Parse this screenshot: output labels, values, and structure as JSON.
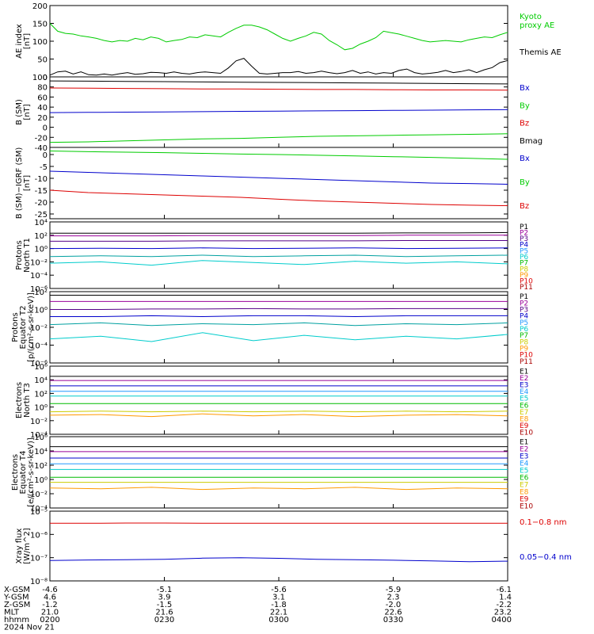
{
  "colors": {
    "black": "#000000",
    "red": "#dd0000",
    "green": "#00cc00",
    "blue": "#0000cc",
    "purple": "#990099",
    "darkpurple": "#550088",
    "cyan": "#00cccc",
    "teal": "#00a0a0",
    "yellow": "#cccc00",
    "orange": "#ff9900",
    "darkred": "#aa0000",
    "lightblue": "#2299ff",
    "kgreen": "#00bb00"
  },
  "chart_data": [
    {
      "type": "line",
      "ylabel": "AE index\n[nT]",
      "ylim": [
        0,
        200
      ],
      "yticks": [
        "0",
        "50",
        "100",
        "150",
        "200"
      ],
      "series": [
        {
          "name": "Kyoto\nproxy AE",
          "color": "green",
          "values": [
            150,
            128,
            122,
            120,
            115,
            112,
            108,
            102,
            98,
            102,
            100,
            108,
            104,
            112,
            108,
            98,
            102,
            105,
            112,
            110,
            118,
            115,
            112,
            125,
            136,
            145,
            145,
            140,
            132,
            120,
            108,
            100,
            108,
            115,
            125,
            120,
            102,
            90,
            76,
            80,
            92,
            100,
            110,
            128,
            124,
            120,
            114,
            108,
            102,
            98,
            100,
            102,
            100,
            98,
            104,
            108,
            112,
            110,
            118,
            125
          ]
        },
        {
          "name": "Themis AE",
          "color": "black",
          "values": [
            5,
            14,
            16,
            8,
            14,
            6,
            5,
            8,
            5,
            9,
            12,
            7,
            9,
            13,
            12,
            10,
            14,
            10,
            8,
            12,
            14,
            12,
            10,
            25,
            45,
            52,
            30,
            10,
            8,
            10,
            12,
            12,
            15,
            10,
            12,
            16,
            12,
            9,
            12,
            18,
            10,
            14,
            8,
            12,
            10,
            18,
            22,
            12,
            8,
            10,
            13,
            18,
            12,
            15,
            20,
            12,
            20,
            26,
            40,
            46
          ]
        }
      ]
    },
    {
      "type": "line",
      "ylabel": "B (SM)\n[nT]",
      "ylim": [
        -40,
        100
      ],
      "yticks": [
        "-40",
        "-20",
        "0",
        "20",
        "40",
        "60",
        "80",
        "100"
      ],
      "series": [
        {
          "name": "Bx",
          "color": "blue",
          "values": [
            29,
            29.5,
            30,
            30.5,
            31,
            31.5,
            32,
            32.5,
            33,
            33.5,
            34,
            34.5,
            35
          ]
        },
        {
          "name": "By",
          "color": "green",
          "values": [
            -30,
            -29,
            -27,
            -25,
            -23,
            -22,
            -20,
            -18,
            -17,
            -16,
            -15,
            -14,
            -13
          ]
        },
        {
          "name": "Bz",
          "color": "red",
          "values": [
            78,
            77.5,
            77,
            76.5,
            76,
            76,
            75.5,
            75,
            75,
            74.5,
            74,
            74,
            73.5
          ]
        },
        {
          "name": "Bmag",
          "color": "black",
          "values": [
            92,
            91.5,
            91,
            90.5,
            90,
            89.5,
            89,
            88.5,
            88,
            87.5,
            87,
            86.5,
            86
          ]
        }
      ]
    },
    {
      "type": "line",
      "ylabel": "B (SM)−IGRF (SM)\n[nT]",
      "ylim": [
        -27,
        3
      ],
      "yticks": [
        "-25",
        "-20",
        "-15",
        "-10",
        "-5",
        "0"
      ],
      "series": [
        {
          "name": "Bx",
          "color": "blue",
          "values": [
            -7,
            -7.5,
            -8,
            -8.5,
            -9,
            -9.5,
            -10,
            -10.5,
            -11,
            -11.5,
            -12,
            -12.2,
            -12.5
          ]
        },
        {
          "name": "By",
          "color": "green",
          "values": [
            1.5,
            1.2,
            1,
            0.8,
            0.5,
            0.2,
            0,
            -0.3,
            -0.6,
            -0.9,
            -1.2,
            -1.6,
            -2
          ]
        },
        {
          "name": "Bz",
          "color": "red",
          "values": [
            -15,
            -16,
            -16.5,
            -17,
            -17.5,
            -18,
            -18.8,
            -19.5,
            -20,
            -20.5,
            -21,
            -21.3,
            -21.5
          ]
        }
      ]
    },
    {
      "type": "line",
      "ylabel": "Protons\nNorth T1",
      "log": true,
      "ylim": [
        -6,
        4
      ],
      "yticks": [
        "10⁻⁶",
        "10⁻⁴",
        "10⁻²",
        "10⁰",
        "10²",
        "10⁴"
      ],
      "legend": [
        "P1",
        "P2",
        "P3",
        "P4",
        "P5",
        "P6",
        "P7",
        "P8",
        "P9",
        "P10",
        "P11"
      ],
      "series": [
        {
          "name": "P1",
          "color": "black",
          "values": [
            2.3,
            2.3,
            2.3,
            2.3,
            2.3,
            2.3,
            2.3,
            2.35,
            2.35,
            2.4
          ]
        },
        {
          "name": "P2",
          "color": "purple",
          "values": [
            1.9,
            1.9,
            1.9,
            1.95,
            1.95,
            1.95,
            1.95,
            2,
            2,
            2
          ]
        },
        {
          "name": "P3",
          "color": "darkpurple",
          "values": [
            1.1,
            1.1,
            1.1,
            1.15,
            1.15,
            1.15,
            1.15,
            1.2,
            1.2,
            1.2
          ]
        },
        {
          "name": "P4",
          "color": "blue",
          "values": [
            0,
            0.05,
            0,
            0.1,
            0,
            0.05,
            0.1,
            0,
            0.05,
            0.1
          ]
        },
        {
          "name": "P5",
          "color": "teal",
          "values": [
            -1.2,
            -1.1,
            -1.2,
            -1.0,
            -1.2,
            -1.1,
            -1.0,
            -1.2,
            -1.1,
            -1.0
          ]
        },
        {
          "name": "P6",
          "color": "cyan",
          "values": [
            -2.2,
            -2.0,
            -2.5,
            -1.8,
            -2.1,
            -2.4,
            -1.9,
            -2.2,
            -2.0,
            -2.3
          ]
        }
      ]
    },
    {
      "type": "line",
      "ylabel": "Protons\nEquator T2\n[p/(cm²-s-sr-keV)]",
      "log": true,
      "ylim": [
        -6,
        2
      ],
      "yticks": [
        "10⁻⁶",
        "10⁻⁴",
        "10⁻²",
        "10⁰",
        "10²"
      ],
      "legend": [
        "P1",
        "P2",
        "P3",
        "P4",
        "P5",
        "P6",
        "P7",
        "P8",
        "P9",
        "P10",
        "P11"
      ],
      "series": [
        {
          "name": "P1",
          "color": "black",
          "values": [
            1.6,
            1.6,
            1.6,
            1.6,
            1.6,
            1.6,
            1.6,
            1.6,
            1.6,
            1.6
          ]
        },
        {
          "name": "P2",
          "color": "purple",
          "values": [
            0.9,
            0.9,
            0.9,
            0.9,
            0.9,
            0.9,
            0.9,
            0.9,
            0.9,
            0.9
          ]
        },
        {
          "name": "P3",
          "color": "darkpurple",
          "values": [
            0,
            0,
            0.05,
            0.05,
            0.1,
            0.05,
            0.05,
            0.1,
            0.1,
            0.1
          ]
        },
        {
          "name": "P4",
          "color": "blue",
          "values": [
            -0.8,
            -0.8,
            -0.7,
            -0.8,
            -0.7,
            -0.7,
            -0.8,
            -0.7,
            -0.7,
            -0.7
          ]
        },
        {
          "name": "P5",
          "color": "teal",
          "values": [
            -1.7,
            -1.5,
            -1.8,
            -1.6,
            -1.7,
            -1.5,
            -1.8,
            -1.6,
            -1.7,
            -1.5
          ]
        },
        {
          "name": "P6",
          "color": "cyan",
          "values": [
            -3.3,
            -3.0,
            -3.6,
            -2.6,
            -3.5,
            -2.9,
            -3.4,
            -3.0,
            -3.3,
            -2.8
          ]
        }
      ]
    },
    {
      "type": "line",
      "ylabel": "Electrons\nNorth T3",
      "log": true,
      "ylim": [
        -4,
        6
      ],
      "yticks": [
        "10⁻⁴",
        "10⁻²",
        "10⁰",
        "10²",
        "10⁴",
        "10⁶"
      ],
      "legend": [
        "E1",
        "E2",
        "E3",
        "E4",
        "E5",
        "E6",
        "E7",
        "E8",
        "E9",
        "E10"
      ],
      "series": [
        {
          "name": "E1",
          "color": "black",
          "values": [
            4.5,
            4.5,
            4.5,
            4.5,
            4.5,
            4.5,
            4.5,
            4.5,
            4.5,
            4.5
          ]
        },
        {
          "name": "E2",
          "color": "purple",
          "values": [
            3.9,
            3.9,
            3.9,
            3.9,
            3.9,
            3.9,
            3.9,
            3.9,
            3.9,
            3.9
          ]
        },
        {
          "name": "E3",
          "color": "blue",
          "values": [
            3.1,
            3.1,
            3.1,
            3.1,
            3.1,
            3.1,
            3.1,
            3.1,
            3.1,
            3.1
          ]
        },
        {
          "name": "E4",
          "color": "lightblue",
          "values": [
            2.3,
            2.3,
            2.3,
            2.3,
            2.3,
            2.3,
            2.3,
            2.3,
            2.3,
            2.3
          ]
        },
        {
          "name": "E5",
          "color": "cyan",
          "values": [
            1.6,
            1.6,
            1.6,
            1.6,
            1.6,
            1.6,
            1.6,
            1.6,
            1.6,
            1.6
          ]
        },
        {
          "name": "E6",
          "color": "kgreen",
          "values": [
            0.5,
            0.5,
            0.5,
            0.5,
            0.5,
            0.5,
            0.5,
            0.5,
            0.5,
            0.5
          ]
        },
        {
          "name": "E7",
          "color": "yellow",
          "values": [
            -0.7,
            -0.6,
            -0.7,
            -0.6,
            -0.7,
            -0.6,
            -0.7,
            -0.6,
            -0.7,
            -0.6
          ]
        },
        {
          "name": "E8",
          "color": "orange",
          "values": [
            -1.2,
            -1.1,
            -1.4,
            -1.0,
            -1.3,
            -1.1,
            -1.4,
            -1.2,
            -1.1,
            -1.3
          ]
        }
      ]
    },
    {
      "type": "line",
      "ylabel": "Electrons\nEquator T4\n[e/(cm²-s-sr-keV)]",
      "log": true,
      "ylim": [
        -4,
        6
      ],
      "yticks": [
        "10⁻⁴",
        "10⁻²",
        "10⁰",
        "10²",
        "10⁴",
        "10⁶"
      ],
      "legend": [
        "E1",
        "E2",
        "E3",
        "E4",
        "E5",
        "E6",
        "E7",
        "E8",
        "E9",
        "E10"
      ],
      "series": [
        {
          "name": "E1",
          "color": "black",
          "values": [
            4.6,
            4.6,
            4.6,
            4.6,
            4.6,
            4.6,
            4.6,
            4.6,
            4.6,
            4.6
          ]
        },
        {
          "name": "E2",
          "color": "purple",
          "values": [
            3.9,
            3.9,
            3.9,
            3.9,
            3.9,
            3.9,
            3.9,
            3.9,
            3.9,
            3.9
          ]
        },
        {
          "name": "E3",
          "color": "blue",
          "values": [
            3.0,
            3.0,
            3.0,
            3.0,
            3.0,
            3.0,
            3.0,
            3.0,
            3.0,
            3.0
          ]
        },
        {
          "name": "E4",
          "color": "lightblue",
          "values": [
            2.2,
            2.2,
            2.2,
            2.2,
            2.2,
            2.2,
            2.2,
            2.2,
            2.2,
            2.2
          ]
        },
        {
          "name": "E5",
          "color": "cyan",
          "values": [
            1.4,
            1.4,
            1.4,
            1.4,
            1.4,
            1.4,
            1.4,
            1.4,
            1.4,
            1.4
          ]
        },
        {
          "name": "E6",
          "color": "kgreen",
          "values": [
            0.3,
            0.3,
            0.3,
            0.3,
            0.3,
            0.3,
            0.3,
            0.3,
            0.3,
            0.3
          ]
        },
        {
          "name": "E7",
          "color": "yellow",
          "values": [
            -0.4,
            -0.4,
            -0.4,
            -0.4,
            -0.4,
            -0.4,
            -0.4,
            -0.4,
            -0.4,
            -0.4
          ]
        },
        {
          "name": "E8",
          "color": "orange",
          "values": [
            -1.2,
            -1.3,
            -1.1,
            -1.4,
            -1.2,
            -1.3,
            -1.1,
            -1.4,
            -1.2,
            -1.3
          ]
        }
      ]
    },
    {
      "type": "line",
      "ylabel": "Xray flux\n[W/m^2]",
      "log": true,
      "ylim": [
        -8,
        -5
      ],
      "yticks": [
        "10⁻⁸",
        "10⁻⁷",
        "10⁻⁶",
        "10⁻⁵"
      ],
      "series": [
        {
          "name": "0.1−0.8 nm",
          "color": "red",
          "values": [
            -5.52,
            -5.52,
            -5.51,
            -5.51,
            -5.52,
            -5.52,
            -5.52,
            -5.52,
            -5.52,
            -5.52,
            -5.52,
            -5.52,
            -5.52
          ]
        },
        {
          "name": "0.05−0.4 nm",
          "color": "blue",
          "values": [
            -7.12,
            -7.1,
            -7.09,
            -7.07,
            -7.02,
            -7.0,
            -7.03,
            -7.07,
            -7.09,
            -7.11,
            -7.14,
            -7.17,
            -7.15
          ]
        }
      ]
    }
  ],
  "x_axis": {
    "row_labels": [
      "X-GSM",
      "Y-GSM",
      "Z-GSM",
      "MLT",
      "hhmm",
      "2024 Nov 21"
    ],
    "ticks": [
      {
        "values": [
          "-4.6",
          "4.6",
          "-1.2",
          "21.0",
          "0200"
        ]
      },
      {
        "values": [
          "-5.1",
          "3.9",
          "-1.5",
          "21.6",
          "0230"
        ]
      },
      {
        "values": [
          "-5.6",
          "3.1",
          "-1.8",
          "22.1",
          "0300"
        ]
      },
      {
        "values": [
          "-5.9",
          "2.3",
          "-2.0",
          "22.6",
          "0330"
        ]
      },
      {
        "values": [
          "-6.1",
          "1.4",
          "-2.2",
          "23.2",
          "0400"
        ]
      }
    ]
  }
}
